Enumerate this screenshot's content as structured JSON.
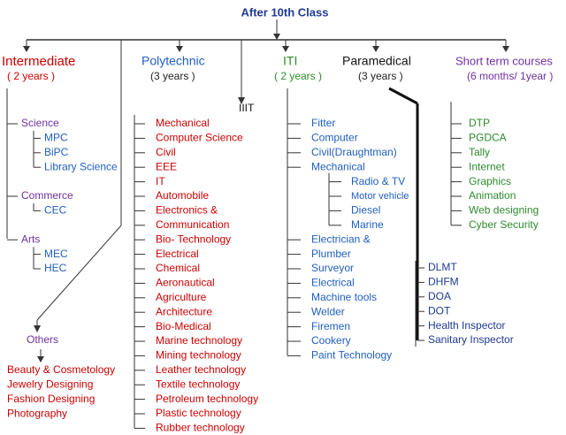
{
  "title": "After 10th Class",
  "branches": [
    {
      "name": "Intermediate",
      "duration": "( 2 years )",
      "groups": [
        {
          "name": "Science",
          "items": [
            "MPC",
            "BiPC",
            "Library Science"
          ]
        },
        {
          "name": "Commerce",
          "items": [
            "CEC"
          ]
        },
        {
          "name": "Arts",
          "items": [
            "MEC",
            "HEC"
          ]
        }
      ]
    },
    {
      "name": "Polytechnic",
      "duration": "(3 years )",
      "items": [
        "Mechanical",
        "Computer Science",
        "Civil",
        "EEE",
        "IT",
        "Automobile",
        "Electronics &",
        "Communication",
        "Bio- Technology",
        "Electrical",
        "Chemical",
        "Aeronautical",
        "Agriculture",
        "Architecture",
        "Bio-Medical",
        "Marine technology",
        "Mining technology",
        "Leather technology",
        "Textile technology",
        "Petroleum technology",
        "Plastic technology",
        "Rubber technology"
      ]
    },
    {
      "name": "IIIT"
    },
    {
      "name": "ITI",
      "duration": "( 2 years )",
      "items": [
        "Fitter",
        "Computer",
        "Civil(Draughtman)",
        {
          "name": "Mechanical",
          "items": [
            "Radio & TV",
            "Motor vehicle",
            "Diesel",
            "Marine"
          ]
        },
        "Electrician &",
        "Plumber",
        "Surveyor",
        "Electrical",
        "Machine tools",
        "Welder",
        "Firemen",
        "Cookery",
        "Paint Technology"
      ]
    },
    {
      "name": "Paramedical",
      "duration": "(3 years )",
      "items": [
        "DLMT",
        "DHFM",
        "DOA",
        "DOT",
        "Health Inspector",
        "Sanitary Inspector"
      ]
    },
    {
      "name": "Short term courses",
      "duration": "(6 months/ 1year )",
      "items": [
        "DTP",
        "PGDCA",
        "Tally",
        "Internet",
        "Graphics",
        "Animation",
        "Web designing",
        "Cyber Security"
      ]
    }
  ],
  "others": {
    "name": "Others",
    "items": [
      "Beauty & Cosmetology",
      "Jewelry Designing",
      "Fashion Designing",
      "Photography"
    ]
  }
}
